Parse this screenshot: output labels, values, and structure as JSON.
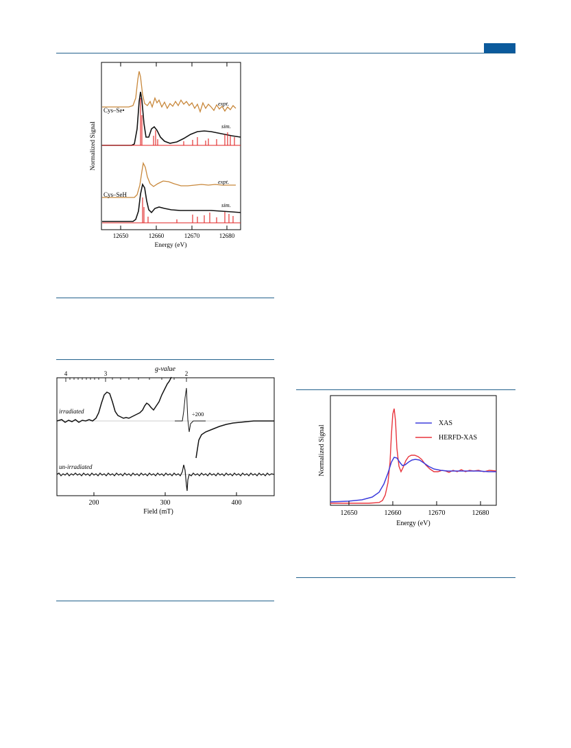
{
  "header": {
    "accent_color": "#0b5a9c",
    "rule_color": "#1f5f8b"
  },
  "fig1": {
    "ylabel": "Normalized Signal",
    "xlabel": "Energy (eV)",
    "xticks": [
      "12650",
      "12660",
      "12670",
      "12680"
    ],
    "panel_top": {
      "label": "Cys–Se•",
      "expt": "expt.",
      "sim": "sim."
    },
    "panel_bottom": {
      "label": "Cys–SeH",
      "expt": "expt.",
      "sim": "sim."
    },
    "colors": {
      "expt": "#c8873a",
      "sim": "#111111",
      "sticks": "#e02020"
    }
  },
  "fig2": {
    "top_axis_label": "g-value",
    "top_ticks": [
      "4",
      "3",
      "2"
    ],
    "trace_labels": {
      "irradiated": "irradiated",
      "unirradiated": "un-irradiated"
    },
    "scale_note": "÷200",
    "xlabel": "Field (mT)",
    "xticks": [
      "200",
      "300",
      "400"
    ]
  },
  "fig3": {
    "ylabel": "Normalized Signal",
    "xlabel": "Energy (eV)",
    "xticks": [
      "12650",
      "12660",
      "12670",
      "12680"
    ],
    "legend": [
      {
        "name": "XAS",
        "color": "#3b3bdc"
      },
      {
        "name": "HERFD-XAS",
        "color": "#e8333b"
      }
    ]
  }
}
